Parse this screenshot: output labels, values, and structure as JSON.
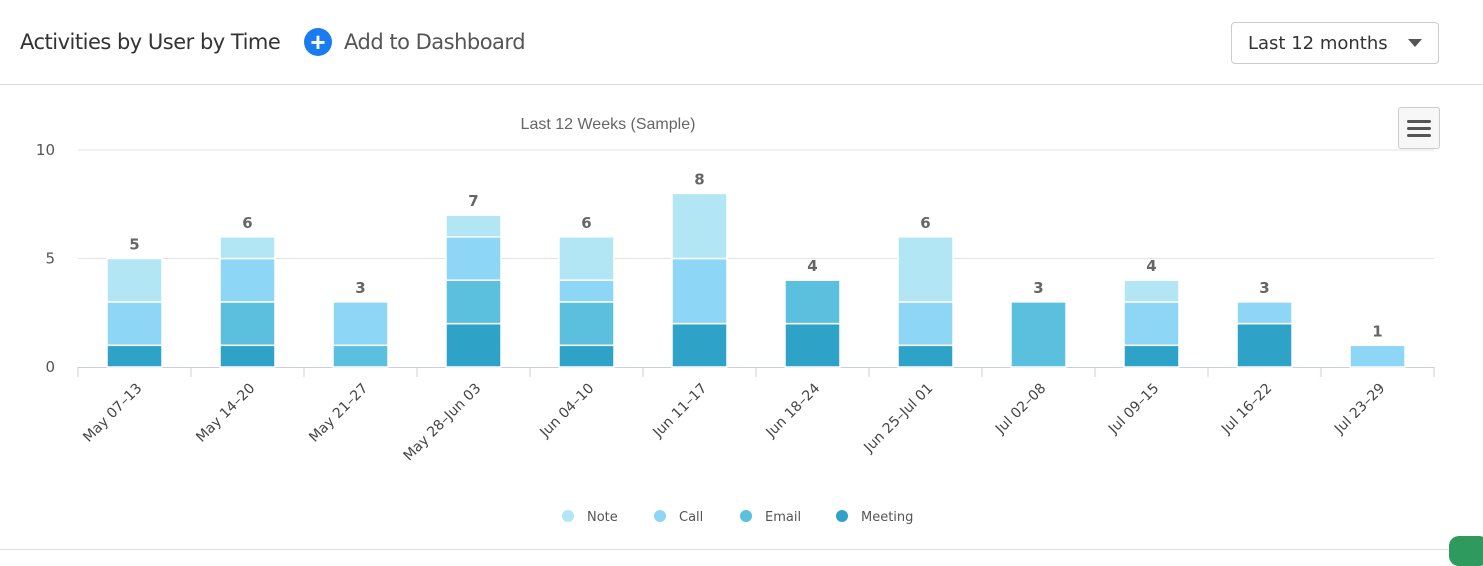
{
  "header": {
    "title": "Activities by User by Time",
    "add_label": "Add to Dashboard",
    "range_select": "Last 12 months"
  },
  "icons": {
    "add": "plus-circle-icon",
    "menu": "hamburger-menu-icon",
    "select": "chevron-down-icon"
  },
  "chart_data": {
    "type": "bar",
    "stacked": true,
    "title": "Last 12 Weeks (Sample)",
    "categories": [
      "May 07–13",
      "May 14–20",
      "May 21–27",
      "May 28–Jun 03",
      "Jun 04–10",
      "Jun 11–17",
      "Jun 18–24",
      "Jun 25–Jul 01",
      "Jul 02–08",
      "Jul 09–15",
      "Jul 16–22",
      "Jul 23–29"
    ],
    "series": [
      {
        "name": "Meeting",
        "color": "#2ea3c7",
        "values": [
          1,
          1,
          0,
          2,
          1,
          2,
          2,
          1,
          0,
          1,
          2,
          0
        ]
      },
      {
        "name": "Email",
        "color": "#5bbfde",
        "values": [
          0,
          2,
          1,
          2,
          2,
          0,
          2,
          0,
          3,
          0,
          0,
          0
        ]
      },
      {
        "name": "Call",
        "color": "#8ed6f6",
        "values": [
          2,
          2,
          2,
          2,
          1,
          3,
          0,
          2,
          0,
          2,
          1,
          1
        ]
      },
      {
        "name": "Note",
        "color": "#b3e6f4",
        "values": [
          2,
          1,
          0,
          1,
          2,
          3,
          0,
          3,
          0,
          1,
          0,
          0
        ]
      }
    ],
    "totals": [
      5,
      6,
      3,
      7,
      6,
      8,
      4,
      6,
      3,
      4,
      3,
      1
    ],
    "legend_order": [
      "Note",
      "Call",
      "Email",
      "Meeting"
    ],
    "ylim": [
      0,
      10
    ],
    "yticks": [
      0,
      5,
      10
    ],
    "grid": true,
    "legend": "bottom-center"
  }
}
